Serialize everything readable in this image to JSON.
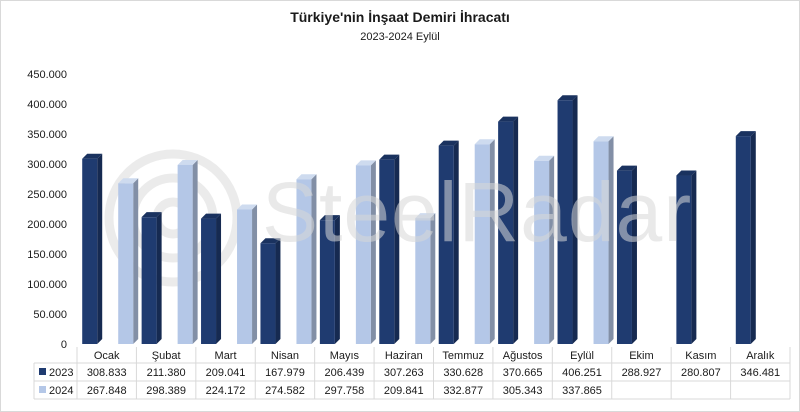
{
  "chart_data": {
    "type": "bar",
    "title": "Türkiye'nin İnşaat Demiri İhracatı",
    "subtitle": "2023-2024 Eylül",
    "categories": [
      "Ocak",
      "Şubat",
      "Mart",
      "Nisan",
      "Mayıs",
      "Haziran",
      "Temmuz",
      "Ağustos",
      "Eylül",
      "Ekim",
      "Kasım",
      "Aralık"
    ],
    "series": [
      {
        "name": "2023",
        "color": "#1f3b70",
        "values": [
          308833,
          211380,
          209041,
          167979,
          206439,
          307263,
          330628,
          370665,
          406251,
          288927,
          280807,
          346481
        ],
        "labels": [
          "308.833",
          "211.380",
          "209.041",
          "167.979",
          "206.439",
          "307.263",
          "330.628",
          "370.665",
          "406.251",
          "288.927",
          "280.807",
          "346.481"
        ]
      },
      {
        "name": "2024",
        "color": "#b4c7e7",
        "values": [
          267848,
          298389,
          224172,
          274582,
          297758,
          209841,
          332877,
          305343,
          337865,
          null,
          null,
          null
        ],
        "labels": [
          "267.848",
          "298.389",
          "224.172",
          "274.582",
          "297.758",
          "209.841",
          "332.877",
          "305.343",
          "337.865",
          "",
          "",
          ""
        ]
      }
    ],
    "ylim": [
      0,
      450000
    ],
    "yticks": [
      "0",
      "50.000",
      "100.000",
      "150.000",
      "200.000",
      "250.000",
      "300.000",
      "350.000",
      "400.000",
      "450.000"
    ],
    "grid": false,
    "legend": "data-table"
  },
  "watermark": {
    "text": "SteelRadar",
    "icon": "steelradar-logo-icon"
  }
}
